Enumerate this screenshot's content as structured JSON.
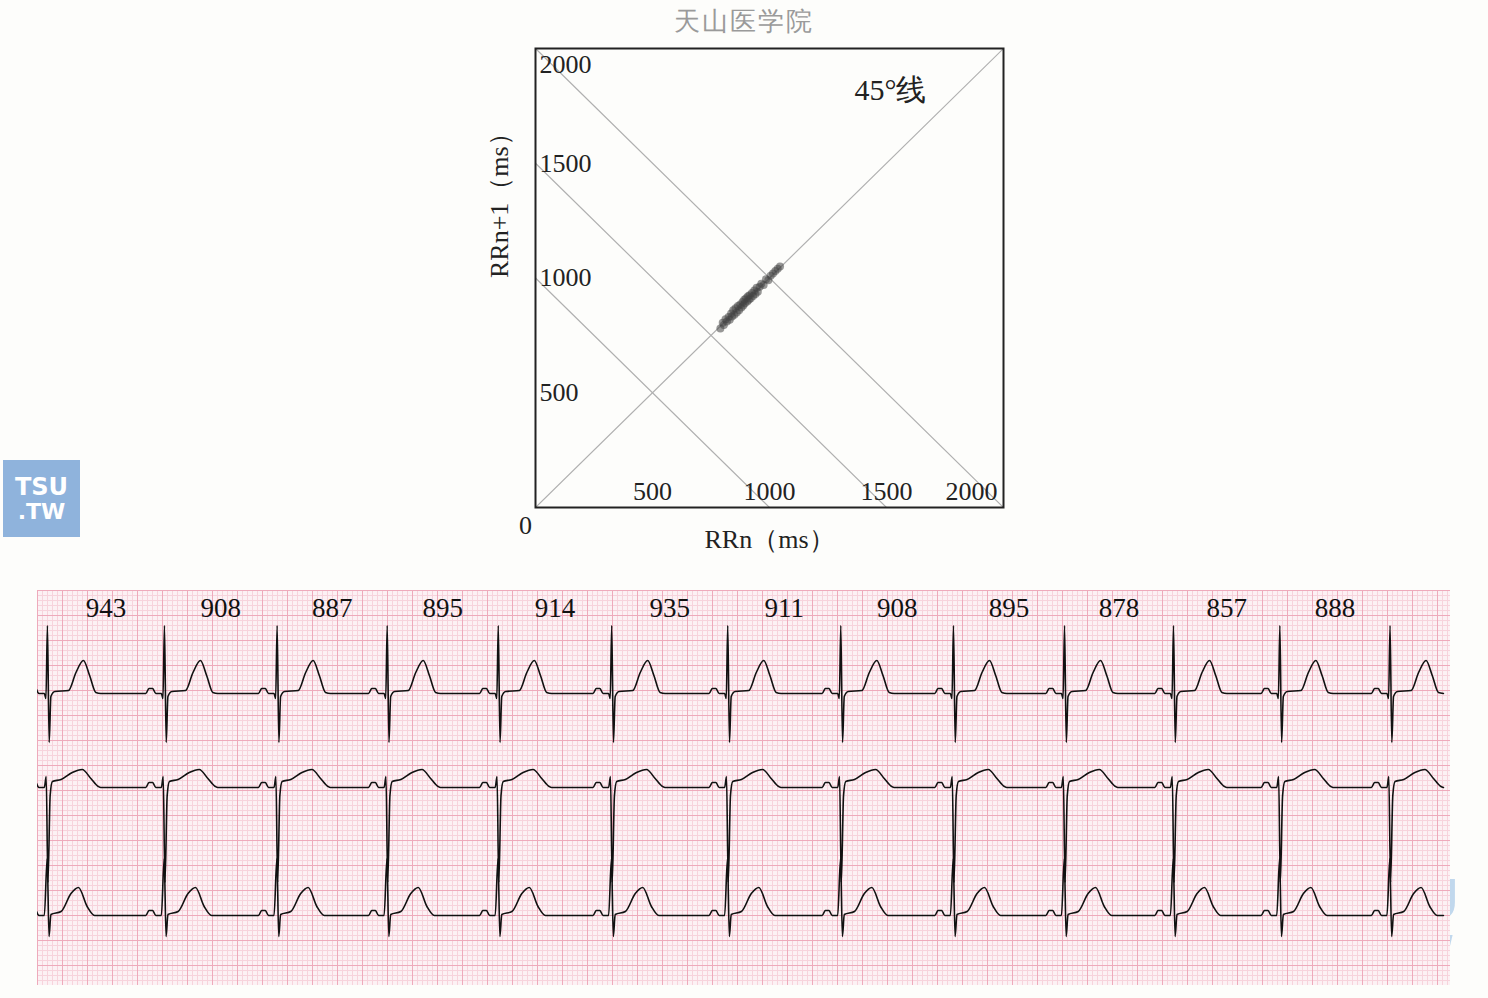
{
  "watermarks": {
    "top": "天山医学院",
    "logo": [
      "TSU",
      ".TW"
    ]
  },
  "chart_data": [
    {
      "type": "scatter",
      "x_label": "RRn（ms）",
      "y_label": "RRn+1（ms）",
      "xlim": [
        0,
        2000
      ],
      "ylim": [
        0,
        2000
      ],
      "xticks": [
        0,
        500,
        1000,
        1500,
        2000
      ],
      "yticks": [
        500,
        1000,
        1500,
        2000
      ],
      "color": "#444444",
      "annotations": [
        {
          "text": "45°线",
          "x": 1517,
          "y": 1817
        }
      ],
      "reference_lines": [
        {
          "x": [
            0,
            2000
          ],
          "y": [
            0,
            2000
          ]
        },
        {
          "x": [
            0,
            1000
          ],
          "y": [
            1000,
            0
          ]
        },
        {
          "x": [
            0,
            1500
          ],
          "y": [
            1500,
            0
          ]
        },
        {
          "x": [
            0,
            2000
          ],
          "y": [
            2000,
            0
          ]
        }
      ],
      "x": [
        790,
        800,
        805,
        812,
        818,
        825,
        830,
        836,
        840,
        845,
        850,
        855,
        860,
        865,
        870,
        875,
        880,
        885,
        888,
        892,
        895,
        900,
        905,
        908,
        912,
        915,
        920,
        925,
        930,
        935,
        940,
        945,
        950,
        958,
        965,
        975,
        985,
        995,
        1005,
        1015,
        1025,
        1035,
        1045
      ],
      "y": [
        780,
        805,
        795,
        820,
        810,
        830,
        818,
        845,
        832,
        860,
        840,
        868,
        850,
        878,
        860,
        885,
        872,
        895,
        880,
        905,
        890,
        912,
        898,
        920,
        905,
        925,
        912,
        935,
        922,
        945,
        930,
        958,
        940,
        962,
        975,
        970,
        995,
        990,
        1010,
        1020,
        1030,
        1040,
        1050
      ]
    },
    {
      "type": "ecg",
      "rr_intervals": [
        943,
        908,
        887,
        895,
        914,
        935,
        911,
        908,
        895,
        878,
        857,
        888
      ],
      "first_beat": 80,
      "xlim": [
        0,
        11386
      ],
      "tick_labels": false,
      "grid": true,
      "color": "#111111"
    }
  ]
}
